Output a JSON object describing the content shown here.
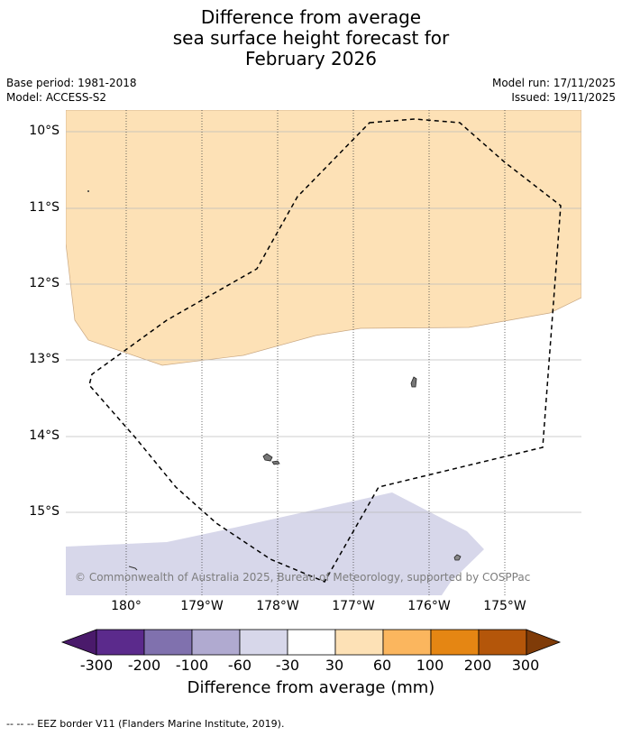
{
  "title": {
    "line1": "Difference from average",
    "line2": "sea surface height forecast for",
    "line3": "February 2026"
  },
  "meta": {
    "base_period": "Base period: 1981-2018",
    "model": "Model: ACCESS-S2",
    "model_run": "Model run: 17/11/2025",
    "issued": "Issued: 19/11/2025"
  },
  "map": {
    "lat_labels": [
      "10°S",
      "11°S",
      "12°S",
      "13°S",
      "14°S",
      "15°S"
    ],
    "lon_labels": [
      "180°",
      "179°W",
      "178°W",
      "177°W",
      "176°W",
      "175°W"
    ],
    "copyright": "© Commonwealth of Australia 2025, Bureau of Meteorology, supported by COSPPac"
  },
  "colorbar": {
    "ticks": [
      "-300",
      "-200",
      "-100",
      "-60",
      "-30",
      "30",
      "60",
      "100",
      "200",
      "300"
    ],
    "colors": [
      "#4a1a6b",
      "#5b2a8c",
      "#8071ae",
      "#b0aad0",
      "#d7d7ea",
      "#ffffff",
      "#fde1b6",
      "#fbb65e",
      "#e58613",
      "#b4560a",
      "#7f3b08"
    ],
    "label": "Difference from average (mm)"
  },
  "footer": "--  --  -- EEZ border V11 (Flanders Marine Institute, 2019)."
}
